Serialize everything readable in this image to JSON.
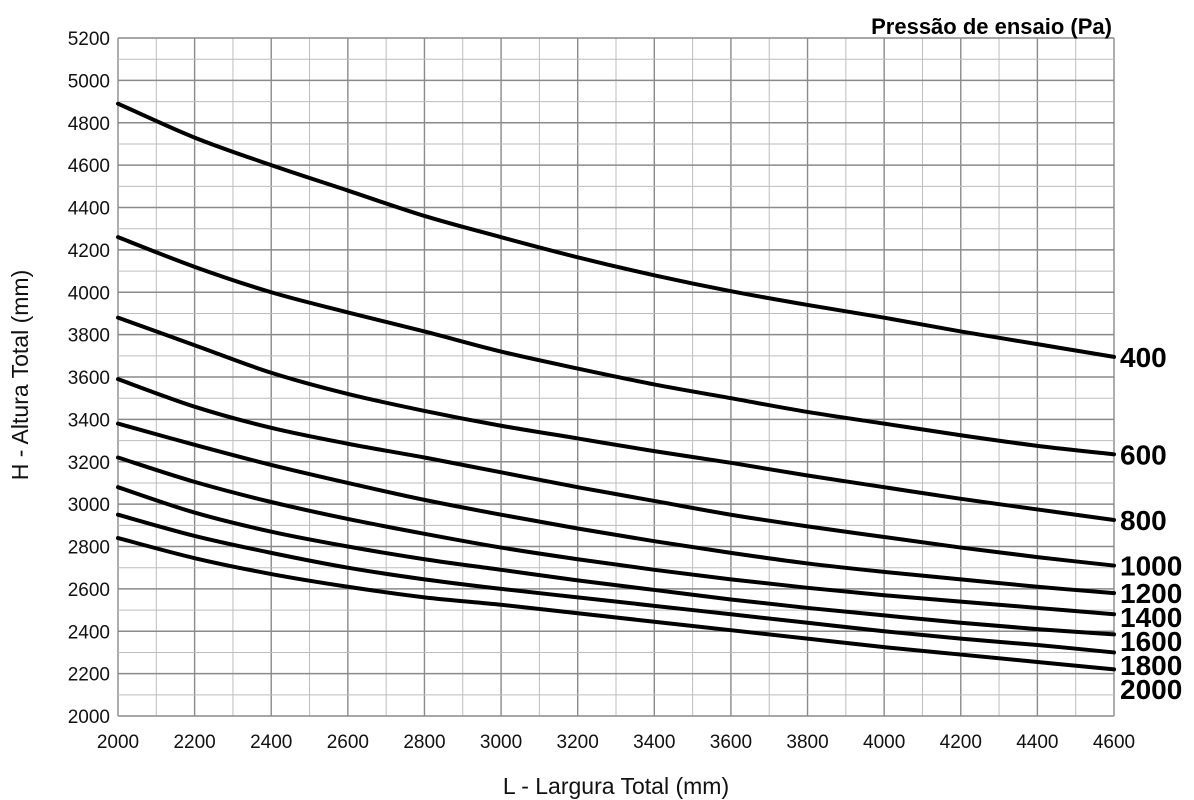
{
  "chart_data": {
    "type": "line",
    "title": "",
    "xlabel": "L - Largura Total (mm)",
    "ylabel": "H - Altura Total (mm)",
    "legend_title": "Pressão de ensaio (Pa)",
    "legend_placement": "right-inline",
    "grid": true,
    "xlim": [
      2000,
      4600
    ],
    "ylim": [
      2000,
      5200
    ],
    "x_ticks": [
      "2000",
      "2200",
      "2400",
      "2600",
      "2800",
      "3000",
      "3200",
      "3400",
      "3600",
      "3800",
      "4000",
      "4200",
      "4400",
      "4600"
    ],
    "y_ticks": [
      "2000",
      "2200",
      "2400",
      "2600",
      "2800",
      "3000",
      "3200",
      "3400",
      "3600",
      "3800",
      "4000",
      "4200",
      "4400",
      "4600",
      "4800",
      "5000",
      "5200"
    ],
    "x": [
      2000,
      2200,
      2400,
      2600,
      2800,
      3000,
      3200,
      3400,
      3600,
      3800,
      4000,
      4200,
      4400,
      4600
    ],
    "series": [
      {
        "name": "400",
        "values": [
          4890,
          4730,
          4600,
          4480,
          4360,
          4260,
          4165,
          4080,
          4005,
          3940,
          3880,
          3815,
          3755,
          3695
        ]
      },
      {
        "name": "600",
        "values": [
          4260,
          4120,
          4000,
          3905,
          3815,
          3720,
          3640,
          3565,
          3500,
          3435,
          3380,
          3325,
          3275,
          3235
        ]
      },
      {
        "name": "800",
        "values": [
          3880,
          3750,
          3620,
          3520,
          3440,
          3370,
          3310,
          3250,
          3195,
          3135,
          3080,
          3025,
          2975,
          2925
        ]
      },
      {
        "name": "1000",
        "values": [
          3590,
          3460,
          3360,
          3285,
          3220,
          3150,
          3080,
          3015,
          2950,
          2895,
          2845,
          2795,
          2750,
          2710
        ]
      },
      {
        "name": "1200",
        "values": [
          3380,
          3280,
          3185,
          3100,
          3020,
          2950,
          2885,
          2825,
          2770,
          2720,
          2680,
          2645,
          2610,
          2580
        ]
      },
      {
        "name": "1400",
        "values": [
          3220,
          3105,
          3010,
          2930,
          2860,
          2795,
          2740,
          2690,
          2645,
          2605,
          2570,
          2540,
          2510,
          2480
        ]
      },
      {
        "name": "1600",
        "values": [
          3080,
          2960,
          2870,
          2800,
          2740,
          2690,
          2640,
          2595,
          2550,
          2510,
          2475,
          2440,
          2410,
          2385
        ]
      },
      {
        "name": "1800",
        "values": [
          2950,
          2850,
          2770,
          2700,
          2645,
          2600,
          2560,
          2520,
          2480,
          2440,
          2400,
          2365,
          2335,
          2300
        ]
      },
      {
        "name": "2000",
        "values": [
          2840,
          2745,
          2670,
          2610,
          2560,
          2525,
          2485,
          2445,
          2405,
          2365,
          2325,
          2290,
          2255,
          2220
        ]
      }
    ]
  }
}
